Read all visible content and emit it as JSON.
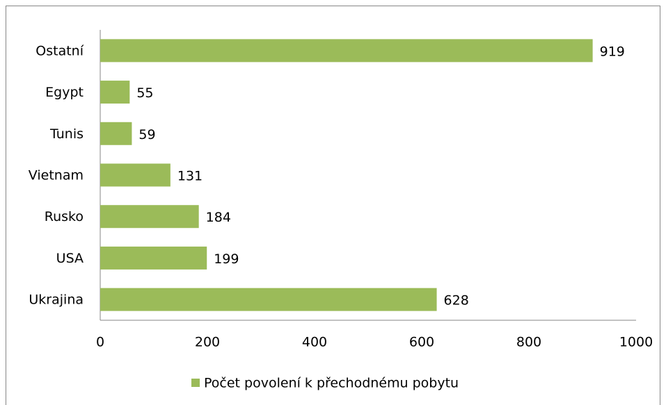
{
  "chart_data": {
    "type": "bar",
    "orientation": "horizontal",
    "categories": [
      "Ostatní",
      "Egypt",
      "Tunis",
      "Vietnam",
      "Rusko",
      "USA",
      "Ukrajina"
    ],
    "series": [
      {
        "name": "Počet povolení k přechodnému pobytu",
        "color": "#9bbb59",
        "values": [
          919,
          55,
          59,
          131,
          184,
          199,
          628
        ]
      }
    ],
    "xlim": [
      0,
      1000
    ],
    "xticks": [
      0,
      200,
      400,
      600,
      800,
      1000
    ],
    "grid": false,
    "legend": "bottom"
  }
}
